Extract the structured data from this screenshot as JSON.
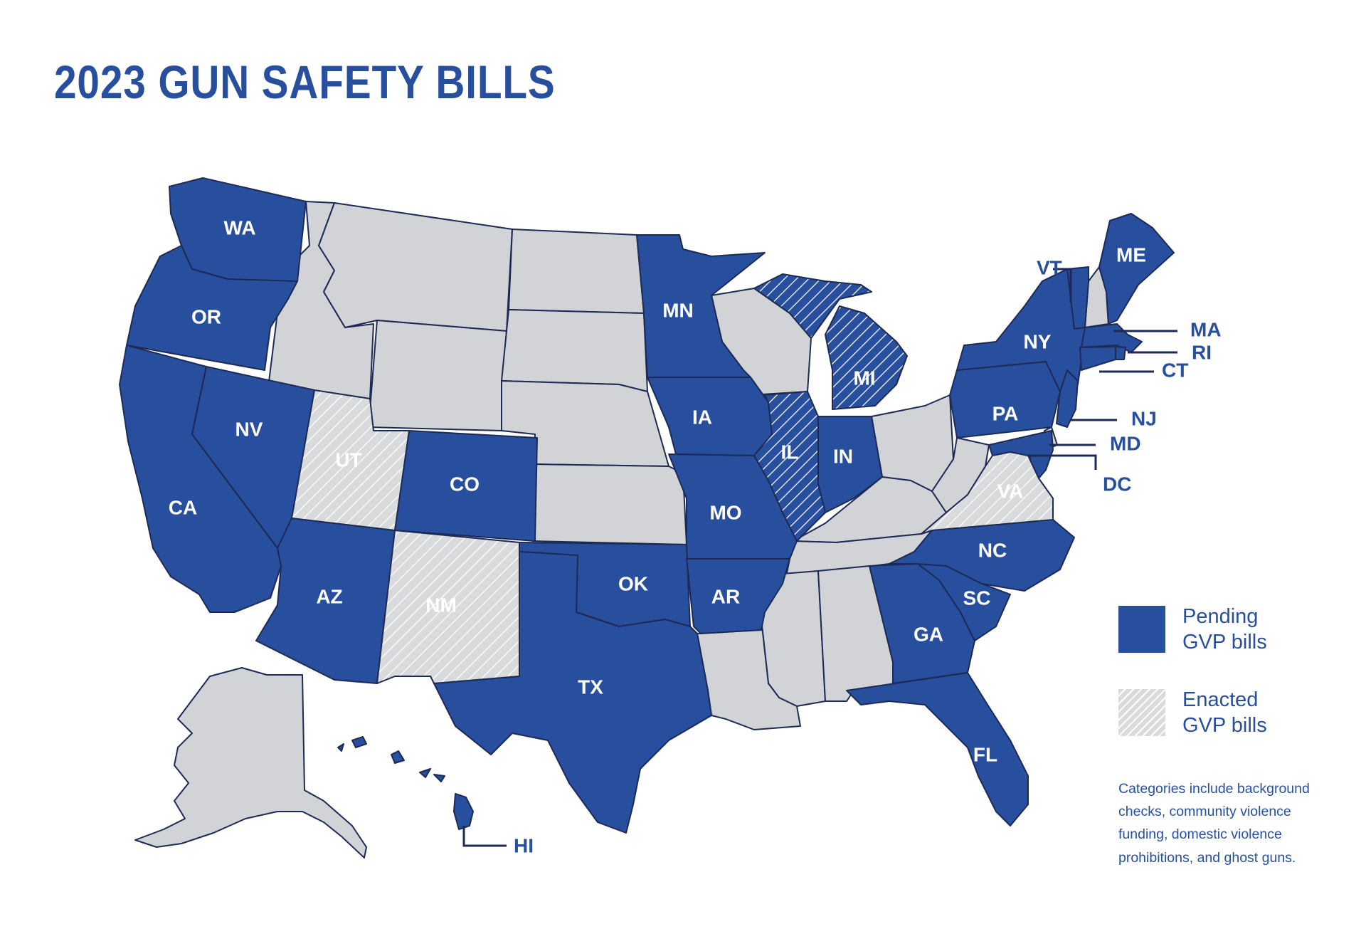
{
  "title": "2023 GUN SAFETY BILLS",
  "colors": {
    "pending": "#284f9e",
    "enacted": "#d9dadc",
    "none": "#d1d3d6",
    "border": "#1d2a55",
    "text_accent": "#284f9e"
  },
  "states": {
    "WA": {
      "label": "WA",
      "status": "pending"
    },
    "OR": {
      "label": "OR",
      "status": "pending"
    },
    "CA": {
      "label": "CA",
      "status": "pending"
    },
    "NV": {
      "label": "NV",
      "status": "pending"
    },
    "UT": {
      "label": "UT",
      "status": "enacted"
    },
    "AZ": {
      "label": "AZ",
      "status": "pending"
    },
    "CO": {
      "label": "CO",
      "status": "pending"
    },
    "NM": {
      "label": "NM",
      "status": "enacted"
    },
    "MN": {
      "label": "MN",
      "status": "pending"
    },
    "IA": {
      "label": "IA",
      "status": "pending"
    },
    "MO": {
      "label": "MO",
      "status": "pending"
    },
    "OK": {
      "label": "OK",
      "status": "pending"
    },
    "TX": {
      "label": "TX",
      "status": "pending"
    },
    "AR": {
      "label": "AR",
      "status": "pending"
    },
    "IL": {
      "label": "IL",
      "status": "pending-enacted"
    },
    "MI": {
      "label": "MI",
      "status": "pending-enacted"
    },
    "IN": {
      "label": "IN",
      "status": "pending"
    },
    "GA": {
      "label": "GA",
      "status": "pending"
    },
    "FL": {
      "label": "FL",
      "status": "pending"
    },
    "SC": {
      "label": "SC",
      "status": "pending"
    },
    "NC": {
      "label": "NC",
      "status": "pending"
    },
    "VA": {
      "label": "VA",
      "status": "enacted"
    },
    "PA": {
      "label": "PA",
      "status": "pending"
    },
    "NY": {
      "label": "NY",
      "status": "pending"
    },
    "ME": {
      "label": "ME",
      "status": "pending"
    },
    "VT": {
      "label": "VT",
      "status": "pending"
    },
    "MA": {
      "label": "MA",
      "status": "pending"
    },
    "RI": {
      "label": "RI",
      "status": "pending"
    },
    "CT": {
      "label": "CT",
      "status": "pending"
    },
    "NJ": {
      "label": "NJ",
      "status": "pending"
    },
    "MD": {
      "label": "MD",
      "status": "pending"
    },
    "DC": {
      "label": "DC",
      "status": "pending"
    },
    "HI": {
      "label": "HI",
      "status": "pending"
    }
  },
  "legend": [
    {
      "label": "Pending\nGVP bills",
      "status": "pending"
    },
    {
      "label": "Enacted\nGVP bills",
      "status": "enacted"
    }
  ],
  "note": "Categories include background checks, community violence funding, domestic violence prohibitions, and ghost guns."
}
